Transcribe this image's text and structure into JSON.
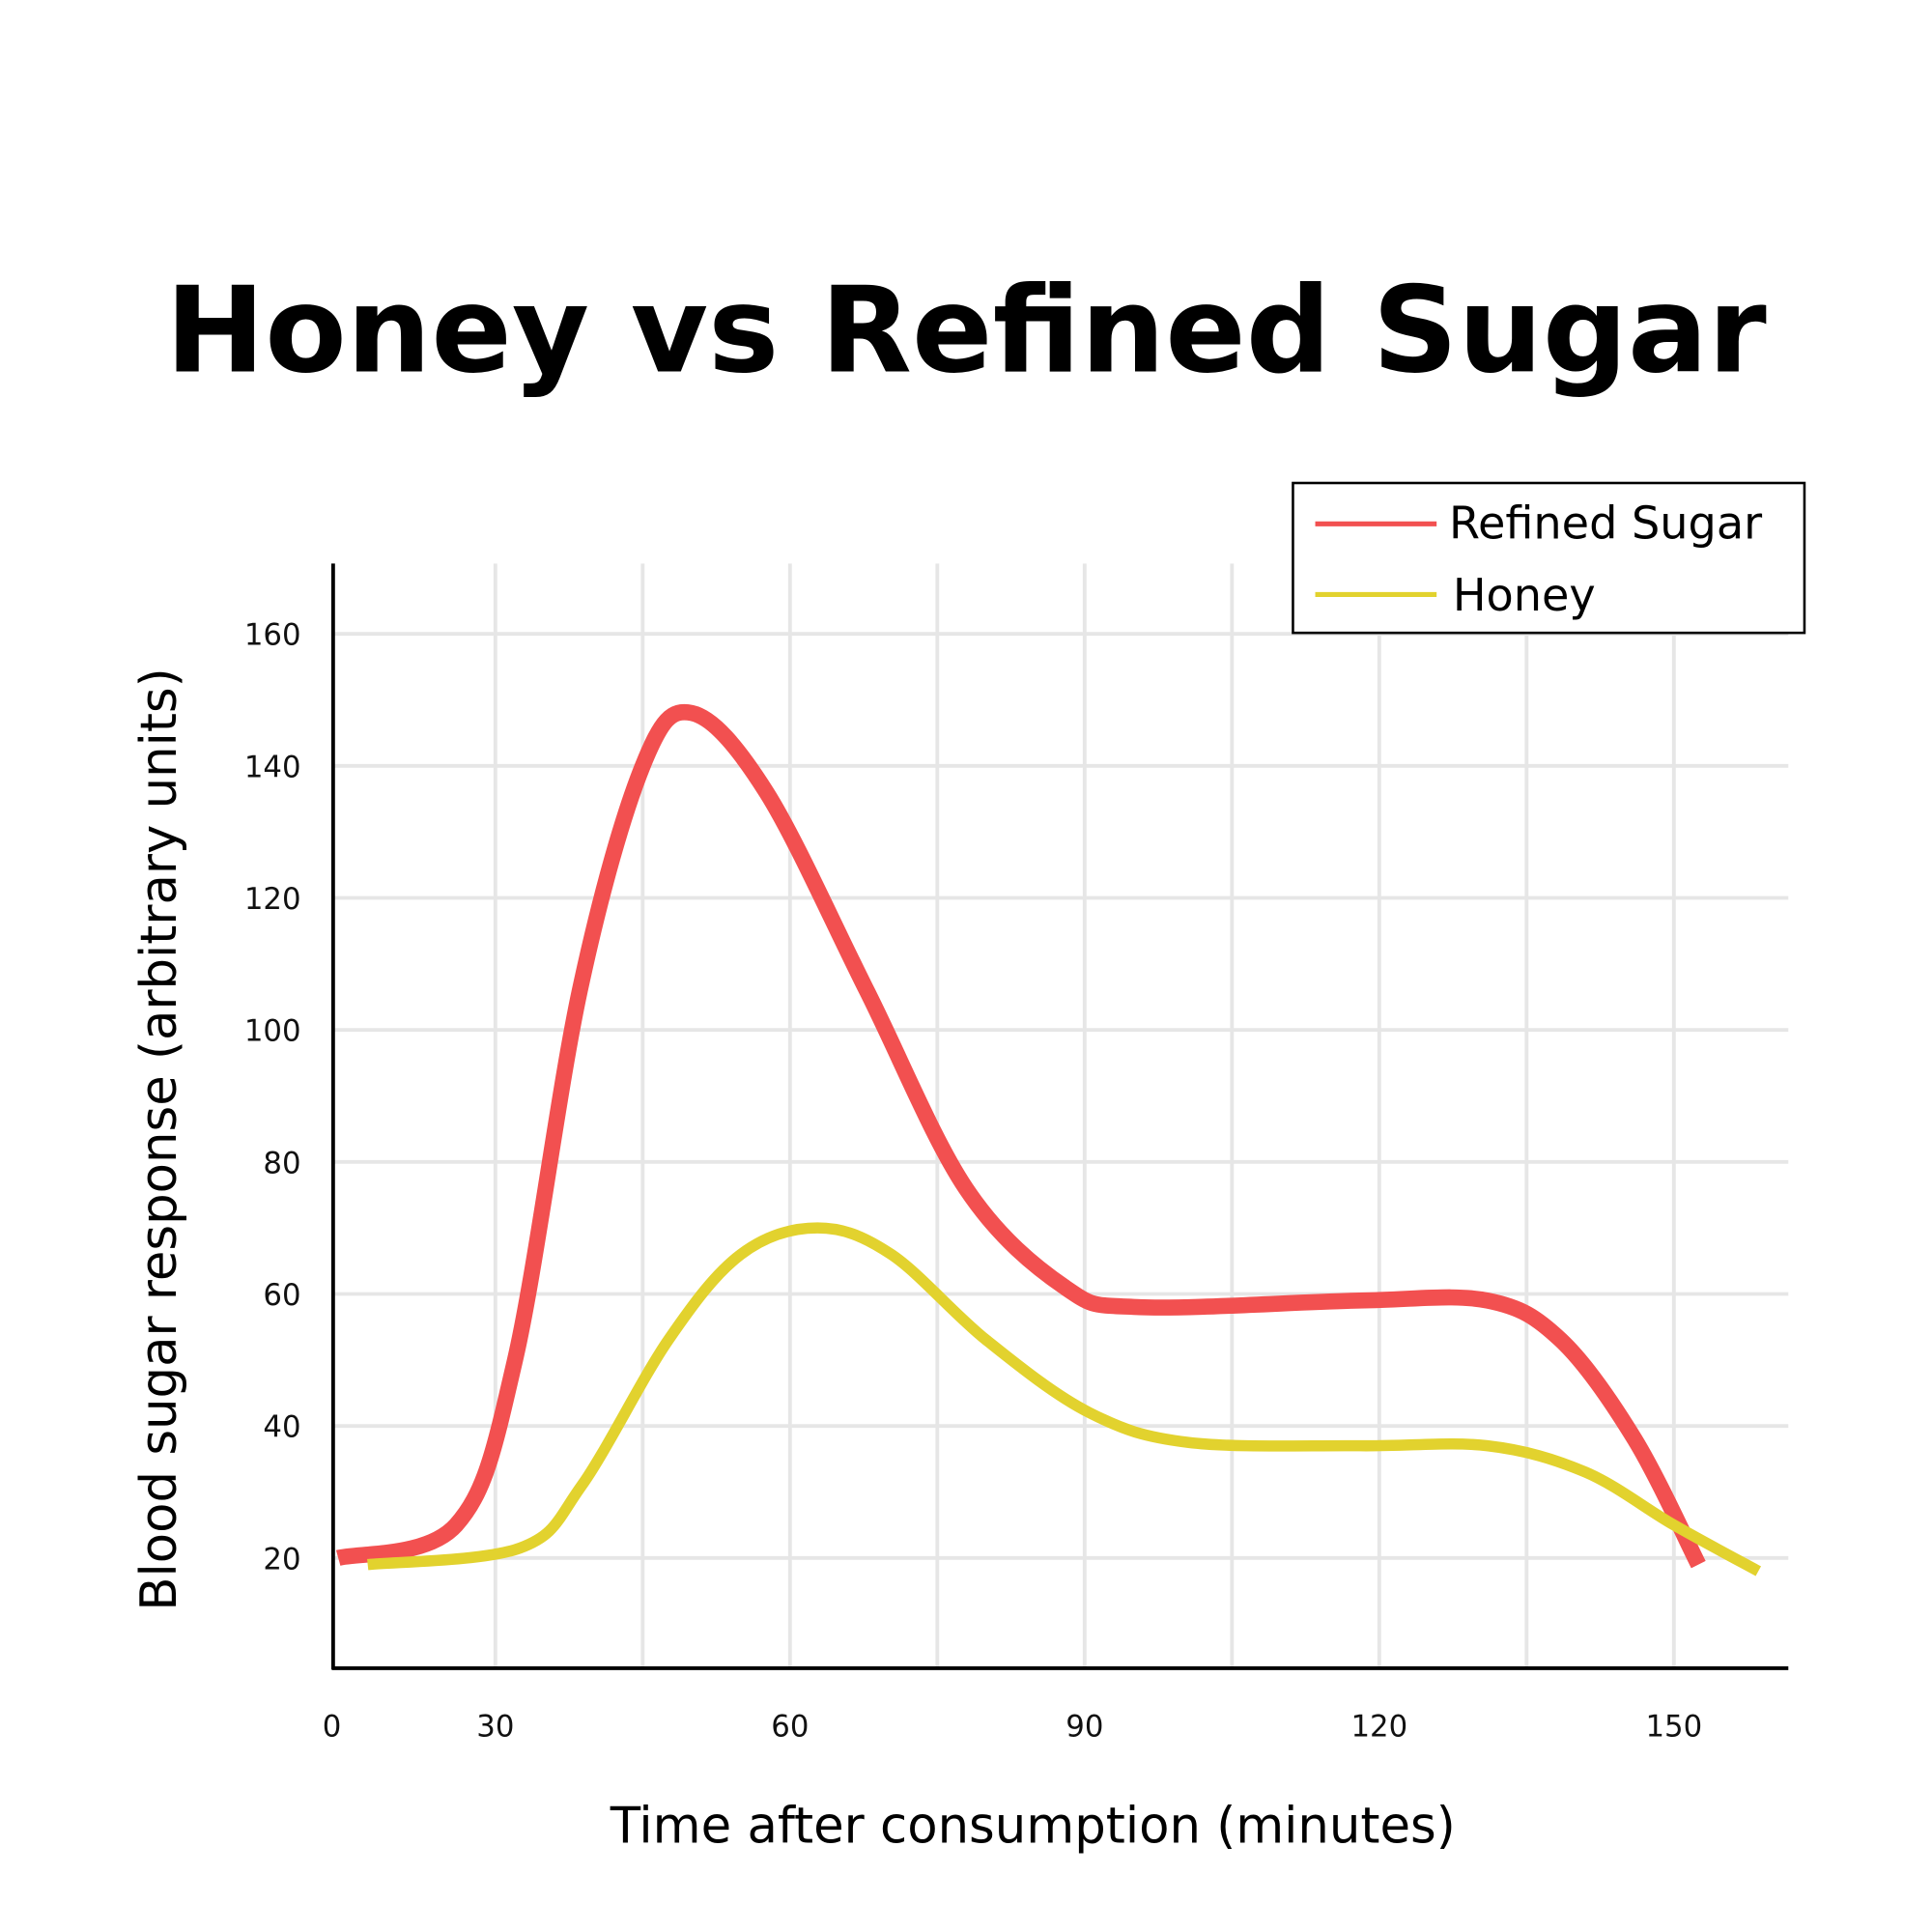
{
  "chart_data": {
    "type": "line",
    "title": "Honey vs Refined Sugar",
    "xlabel": "Time after consumption (minutes)",
    "ylabel": "Blood sugar response (arbitrary units)",
    "x_ticks": [
      "0",
      "30",
      "60",
      "90",
      "120",
      "150"
    ],
    "y_ticks": [
      20,
      40,
      60,
      80,
      100,
      120,
      140,
      160
    ],
    "grid": true,
    "legend_position": "top-right",
    "series": [
      {
        "name": "Refined Sugar",
        "color": "#f25050",
        "points": [
          [
            14,
            20
          ],
          [
            26,
            25
          ],
          [
            32,
            50
          ],
          [
            38.6,
            106
          ],
          [
            45,
            140
          ],
          [
            50,
            148
          ],
          [
            57.6,
            136
          ],
          [
            67.8,
            106
          ],
          [
            77.9,
            76
          ],
          [
            88,
            61
          ],
          [
            95.6,
            58
          ],
          [
            118,
            59
          ],
          [
            131,
            59
          ],
          [
            138.5,
            53
          ],
          [
            146,
            38
          ],
          [
            152.5,
            19
          ]
        ]
      },
      {
        "name": "Honey",
        "color": "#e2d22e",
        "points": [
          [
            17,
            19
          ],
          [
            32.5,
            21.5
          ],
          [
            38.8,
            31
          ],
          [
            47.6,
            53
          ],
          [
            55,
            66
          ],
          [
            62.8,
            70
          ],
          [
            70.3,
            66
          ],
          [
            80,
            53
          ],
          [
            90.5,
            42
          ],
          [
            100.6,
            37.5
          ],
          [
            118,
            37
          ],
          [
            131,
            37
          ],
          [
            141,
            33
          ],
          [
            150,
            25
          ],
          [
            158.6,
            18
          ]
        ]
      }
    ]
  }
}
